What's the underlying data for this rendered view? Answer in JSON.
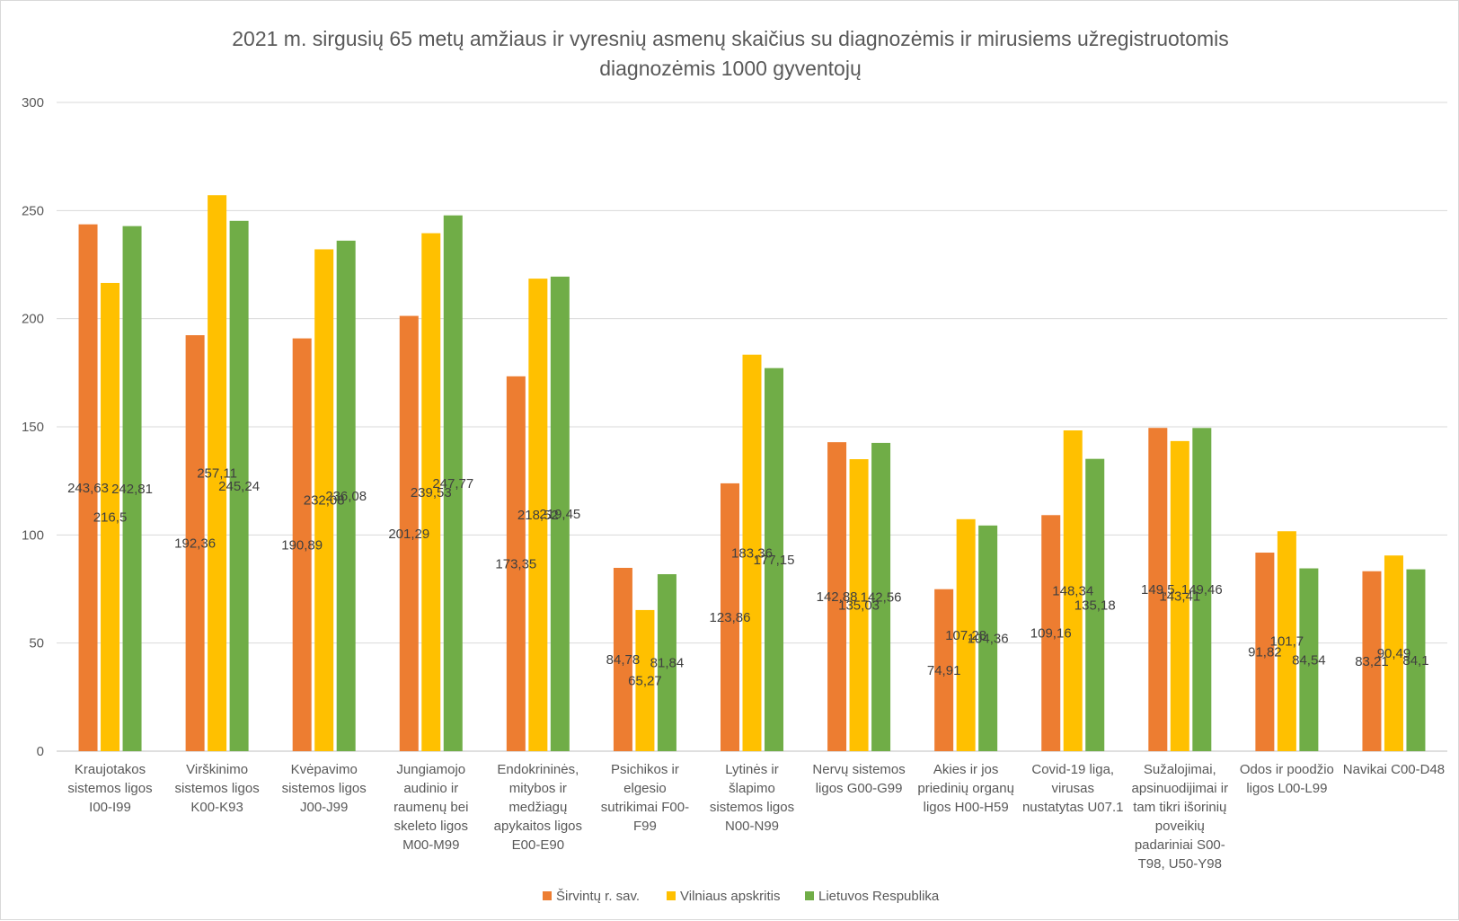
{
  "chart_data": {
    "type": "bar",
    "title_lines": [
      "2021 m. sirgusių 65 metų amžiaus ir vyresnių asmenų skaičius su diagnozėmis ir mirusiems užregistruotomis",
      "diagnozėmis 1000 gyventojų"
    ],
    "ylim": [
      0,
      300
    ],
    "yticks": [
      0,
      50,
      100,
      150,
      200,
      250,
      300
    ],
    "grid": true,
    "legend_position": "bottom",
    "categories": [
      [
        "Kraujotakos",
        "sistemos ligos",
        "I00-I99"
      ],
      [
        "Virškinimo",
        "sistemos ligos",
        "K00-K93"
      ],
      [
        "Kvėpavimo",
        "sistemos ligos",
        "J00-J99"
      ],
      [
        "Jungiamojo",
        "audinio ir",
        "raumenų bei",
        "skeleto ligos",
        "M00-M99"
      ],
      [
        "Endokrininės,",
        "mitybos ir",
        "medžiagų",
        "apykaitos ligos",
        "E00-E90"
      ],
      [
        "Psichikos ir",
        "elgesio",
        "sutrikimai F00-",
        "F99"
      ],
      [
        "Lytinės ir",
        "šlapimo",
        "sistemos ligos",
        "N00-N99"
      ],
      [
        "Nervų sistemos",
        "ligos G00-G99"
      ],
      [
        "Akies ir jos",
        "priedinių organų",
        "ligos H00-H59"
      ],
      [
        "Covid-19 liga,",
        "virusas",
        "nustatytas U07.1"
      ],
      [
        "Sužalojimai,",
        "apsinuodijimai ir",
        "tam tikri išorinių",
        "poveikių",
        "padariniai S00-",
        "T98, U50-Y98"
      ],
      [
        "Odos ir poodžio",
        "ligos L00-L99"
      ],
      [
        "Navikai C00-D48"
      ]
    ],
    "series": [
      {
        "name": "Širvintų r. sav.",
        "color": "#ed7d31",
        "values": [
          243.63,
          192.36,
          190.89,
          201.29,
          173.35,
          84.78,
          123.86,
          142.88,
          74.91,
          109.16,
          149.5,
          91.82,
          83.21
        ],
        "labels": [
          "243,63",
          "192,36",
          "190,89",
          "201,29",
          "173,35",
          "84,78",
          "123,86",
          "142,88",
          "74,91",
          "109,16",
          "149,5",
          "91,82",
          "83,21"
        ]
      },
      {
        "name": "Vilniaus apskritis",
        "color": "#ffc000",
        "values": [
          216.5,
          257.11,
          232.08,
          239.53,
          218.52,
          65.27,
          183.36,
          135.03,
          107.28,
          148.34,
          143.41,
          101.7,
          90.49
        ],
        "labels": [
          "216,5",
          "257,11",
          "232,08",
          "239,53",
          "218,52",
          "65,27",
          "183,36",
          "135,03",
          "107,28",
          "148,34",
          "143,41",
          "101,7",
          "90,49"
        ]
      },
      {
        "name": "Lietuvos Respublika",
        "color": "#70ad47",
        "values": [
          242.81,
          245.24,
          236.08,
          247.77,
          219.45,
          81.84,
          177.15,
          142.56,
          104.36,
          135.18,
          149.46,
          84.54,
          84.1
        ],
        "labels": [
          "242,81",
          "245,24",
          "236,08",
          "247,77",
          "219,45",
          "81,84",
          "177,15",
          "142,56",
          "104,36",
          "135,18",
          "149,46",
          "84,54",
          "84,1"
        ]
      }
    ]
  }
}
